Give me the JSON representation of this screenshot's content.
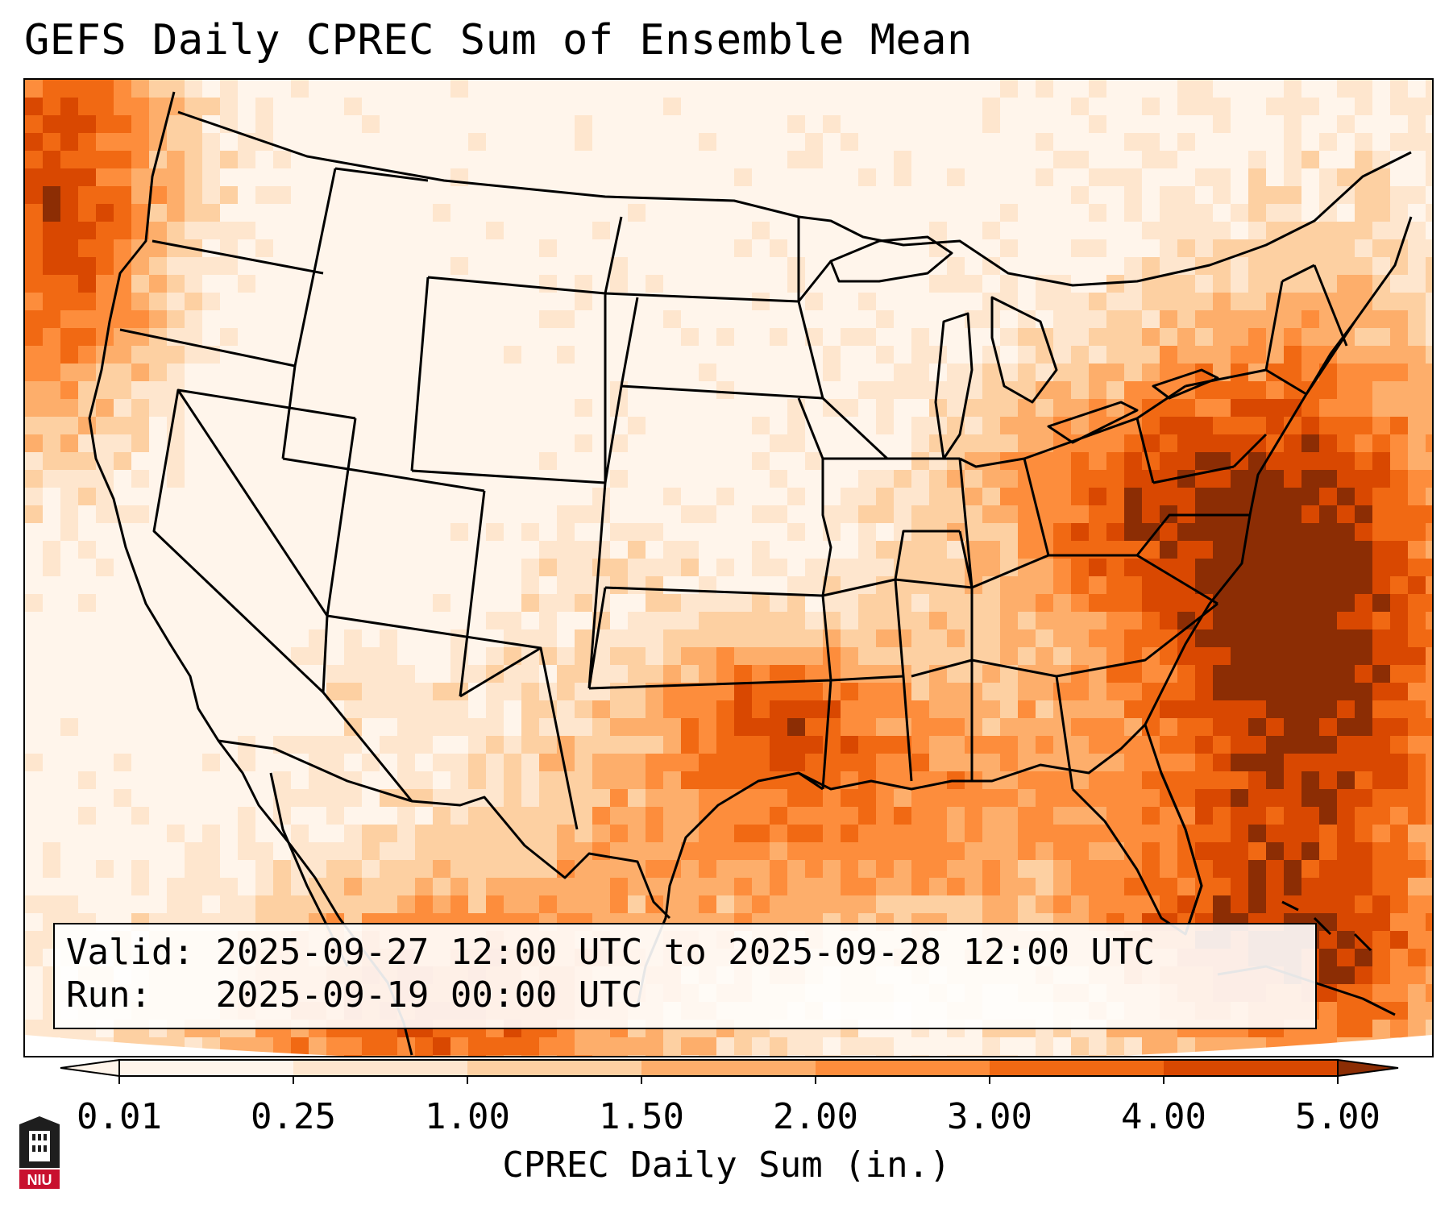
{
  "title": "GEFS Daily CPREC Sum of Ensemble Mean",
  "info": {
    "valid_label": "Valid:",
    "valid_value": "2025-09-27 12:00 UTC to 2025-09-28 12:00 UTC",
    "run_label": "Run:",
    "run_value": "2025-09-19 00:00 UTC"
  },
  "colorbar": {
    "label": "CPREC Daily Sum (in.)",
    "ticks": [
      "0.01",
      "0.25",
      "1.00",
      "1.50",
      "2.00",
      "3.00",
      "4.00",
      "5.00"
    ],
    "colors": [
      "#fff5eb",
      "#fee6ce",
      "#fdd0a2",
      "#fdae6b",
      "#fd8d3c",
      "#f16913",
      "#d94801",
      "#8c2d04"
    ],
    "extend": "both"
  },
  "logo": {
    "text": "NIU",
    "colors": {
      "tower": "#1e1e1e",
      "band": "#c8102e"
    }
  },
  "map": {
    "projection": "Lambert conformal, CONUS",
    "colors": {
      "boundary": "#000000",
      "outside": "#ffffff"
    },
    "field": "CPREC daily sum, inches"
  }
}
